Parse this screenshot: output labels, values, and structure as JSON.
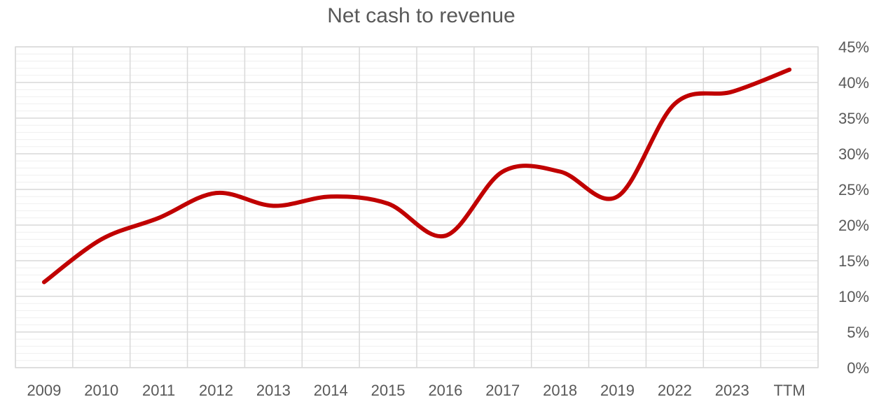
{
  "chart_data": {
    "type": "line",
    "title": "Net cash to revenue",
    "xlabel": "",
    "ylabel": "",
    "categories": [
      "2009",
      "2010",
      "2011",
      "2012",
      "2013",
      "2014",
      "2015",
      "2016",
      "2017",
      "2018",
      "2019",
      "2022",
      "2023",
      "TTM"
    ],
    "series": [
      {
        "values": [
          12.0,
          18.0,
          21.0,
          24.5,
          22.7,
          24.0,
          23.0,
          18.5,
          27.5,
          27.5,
          24.0,
          37.0,
          38.7,
          41.8
        ],
        "color": "#c00000"
      }
    ],
    "ylim": [
      0,
      45
    ],
    "yticks": [
      "0%",
      "5%",
      "10%",
      "15%",
      "20%",
      "25%",
      "30%",
      "35%",
      "40%",
      "45%"
    ],
    "y_axis_position": "right",
    "grid": true,
    "smooth": true
  }
}
